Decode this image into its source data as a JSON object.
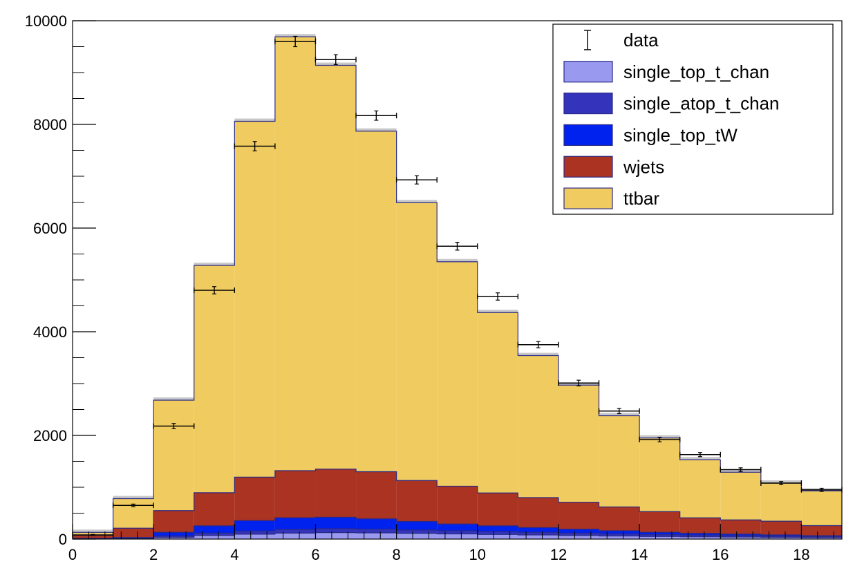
{
  "chart_data": {
    "type": "bar",
    "stacked": true,
    "title": "",
    "xlabel": "",
    "ylabel": "",
    "xlim": [
      0,
      19
    ],
    "ylim": [
      0,
      10000
    ],
    "bin_width": 1,
    "bin_edges": [
      0,
      1,
      2,
      3,
      4,
      5,
      6,
      7,
      8,
      9,
      10,
      11,
      12,
      13,
      14,
      15,
      16,
      17,
      18,
      19
    ],
    "x_tick_labels": [
      "0",
      "2",
      "4",
      "6",
      "8",
      "10",
      "12",
      "14",
      "16",
      "18"
    ],
    "y_tick_labels": [
      "0",
      "2000",
      "4000",
      "6000",
      "8000",
      "10000"
    ],
    "grid": false,
    "legend_position": "top-right",
    "series": [
      {
        "name": "single_top_t_chan",
        "color": "#9999f0",
        "values": [
          5,
          10,
          35,
          70,
          95,
          115,
          125,
          120,
          110,
          100,
          90,
          80,
          70,
          60,
          50,
          45,
          40,
          35,
          30
        ]
      },
      {
        "name": "single_atop_t_chan",
        "color": "#3333bb",
        "values": [
          5,
          10,
          25,
          45,
          60,
          70,
          75,
          70,
          65,
          60,
          55,
          50,
          45,
          40,
          35,
          30,
          25,
          22,
          18
        ]
      },
      {
        "name": "single_top_tW",
        "color": "#0022ee",
        "values": [
          5,
          10,
          70,
          140,
          200,
          225,
          220,
          200,
          165,
          130,
          110,
          90,
          75,
          60,
          45,
          35,
          30,
          23,
          17
        ]
      },
      {
        "name": "wjets",
        "color": "#aa3322",
        "values": [
          60,
          180,
          420,
          640,
          840,
          910,
          930,
          910,
          790,
          730,
          635,
          580,
          520,
          460,
          400,
          300,
          275,
          265,
          195
        ]
      },
      {
        "name": "ttbar",
        "color": "#f0cc60",
        "values": [
          55,
          570,
          2130,
          4385,
          6865,
          8370,
          7790,
          6570,
          5360,
          4330,
          3480,
          2740,
          2260,
          1760,
          1420,
          1120,
          920,
          735,
          670
        ]
      }
    ],
    "mc_uncertainty_color": "#c8c8c8",
    "data": {
      "name": "data",
      "x": [
        0.5,
        1.5,
        2.5,
        3.5,
        4.5,
        5.5,
        6.5,
        7.5,
        8.5,
        9.5,
        10.5,
        11.5,
        12.5,
        13.5,
        14.5,
        15.5,
        16.5,
        17.5,
        18.5
      ],
      "y": [
        80,
        650,
        2180,
        4800,
        7580,
        9600,
        9250,
        8170,
        6930,
        5650,
        4680,
        3750,
        3010,
        2470,
        1920,
        1630,
        1340,
        1080,
        950
      ],
      "yerr": [
        10,
        25,
        50,
        70,
        90,
        100,
        95,
        90,
        80,
        75,
        70,
        60,
        55,
        50,
        45,
        40,
        35,
        30,
        30
      ]
    },
    "legend": [
      {
        "label": "data",
        "style": "errorbar"
      },
      {
        "label": "single_top_t_chan",
        "style": "box",
        "color": "#9999f0"
      },
      {
        "label": "single_atop_t_chan",
        "style": "box",
        "color": "#3333bb"
      },
      {
        "label": "single_top_tW",
        "style": "box",
        "color": "#0022ee"
      },
      {
        "label": "wjets",
        "style": "box",
        "color": "#aa3322"
      },
      {
        "label": "ttbar",
        "style": "box",
        "color": "#f0cc60"
      }
    ]
  }
}
